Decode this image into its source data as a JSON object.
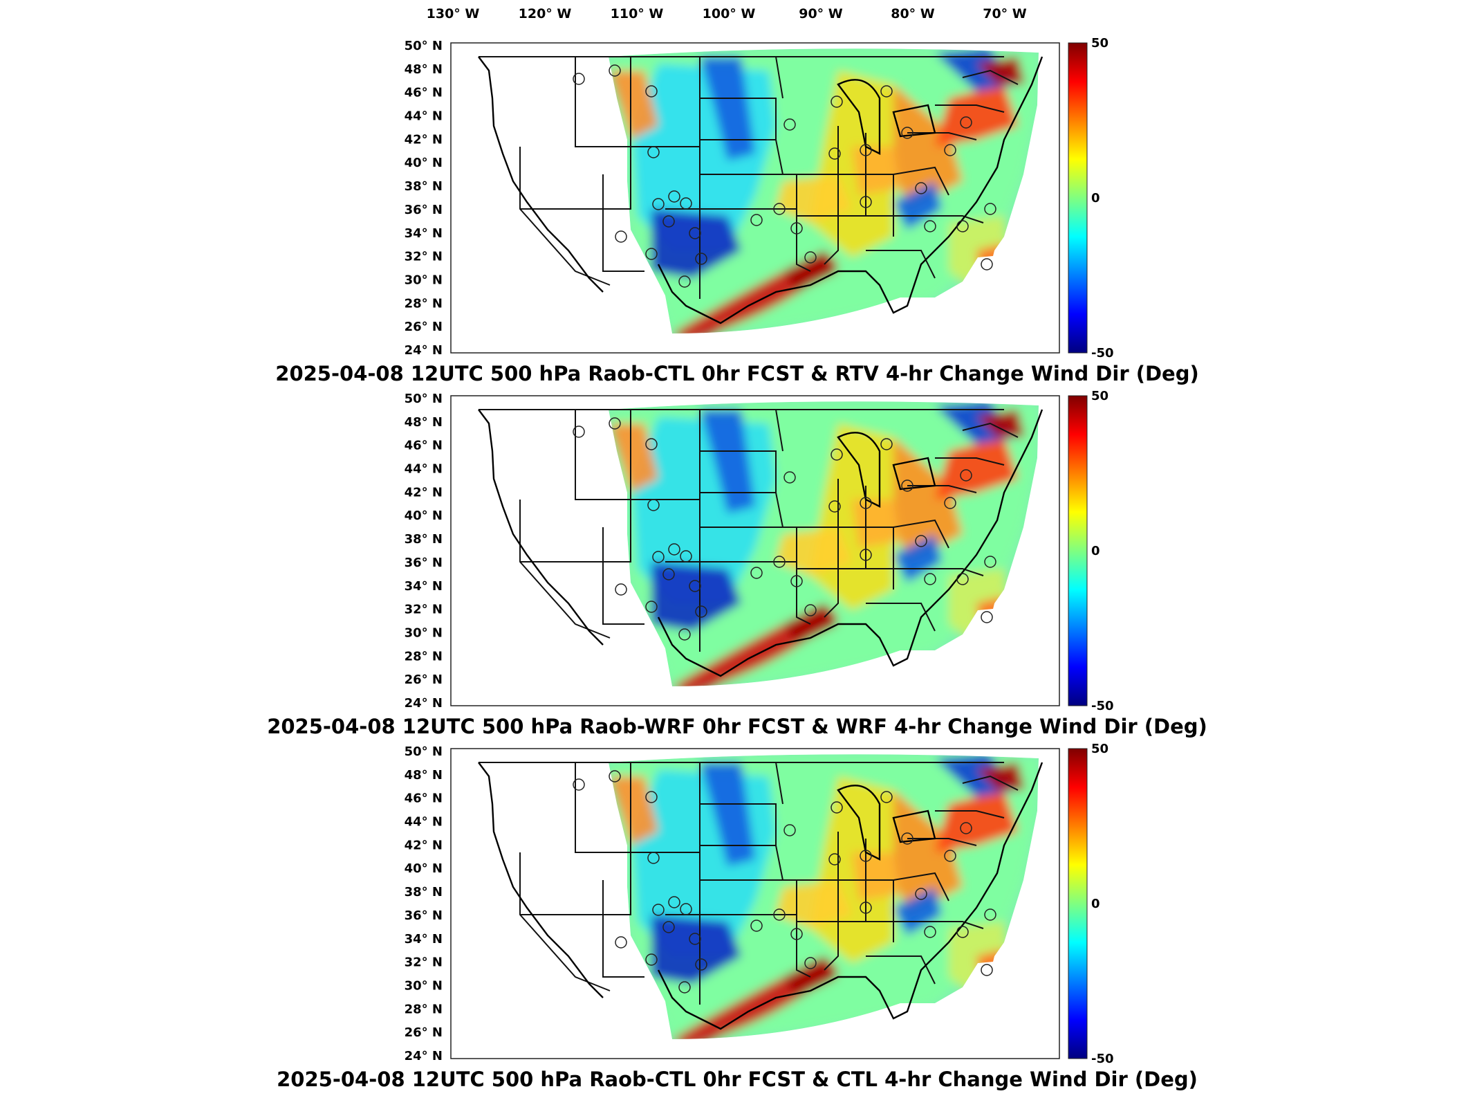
{
  "top_longitude_labels": [
    "130° W",
    "120° W",
    "110° W",
    "100° W",
    "90° W",
    "80° W",
    "70° W"
  ],
  "latitude_labels": [
    "50° N",
    "48° N",
    "46° N",
    "44° N",
    "42° N",
    "40° N",
    "38° N",
    "36° N",
    "34° N",
    "32° N",
    "30° N",
    "28° N",
    "26° N",
    "24° N"
  ],
  "colorbar": {
    "max_label": "50",
    "mid_label": "0",
    "min_label": "-50",
    "range": [
      -50,
      50
    ],
    "colormap": "jet"
  },
  "panels": [
    {
      "title": "2025-04-08 12UTC 500 hPa Raob-CTL 0hr FCST & RTV 4-hr Change Wind Dir (Deg)"
    },
    {
      "title": "2025-04-08 12UTC 500 hPa Raob-WRF 0hr FCST & WRF 4-hr Change Wind Dir (Deg)"
    },
    {
      "title": "2025-04-08 12UTC 500 hPa Raob-CTL 0hr FCST & CTL 4-hr Change Wind Dir (Deg)"
    }
  ],
  "colors": {
    "dark_red": "#7f0000",
    "red": "#e02010",
    "yellow": "#f0f020",
    "cyan": "#20e0ff",
    "blue": "#1030d0",
    "dark_blue": "#00007f"
  }
}
